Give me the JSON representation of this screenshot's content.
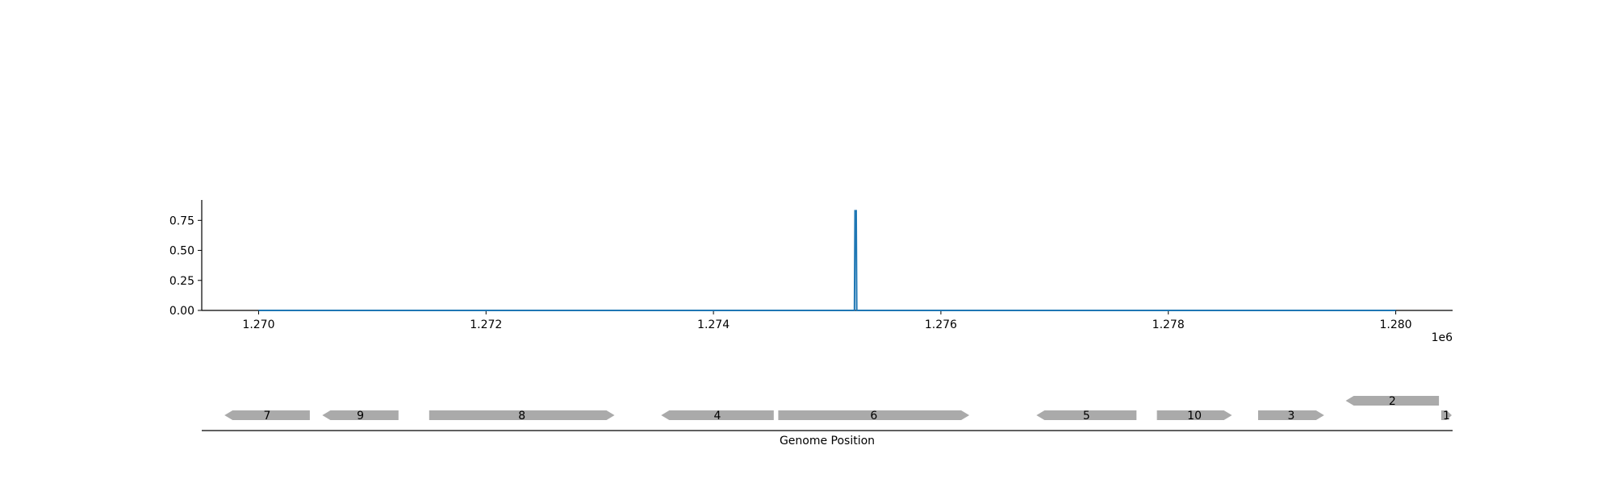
{
  "chart_data": [
    {
      "type": "line",
      "x_exponent_label": "1e6",
      "xlim": [
        1269500,
        1280500
      ],
      "ylim": [
        0,
        0.92
      ],
      "x_ticks": [
        1270000,
        1272000,
        1274000,
        1276000,
        1278000,
        1280000
      ],
      "x_tick_labels": [
        "1.270",
        "1.272",
        "1.274",
        "1.276",
        "1.278",
        "1.280"
      ],
      "y_ticks": [
        0,
        0.25,
        0.5,
        0.75
      ],
      "y_tick_labels": [
        "0.00",
        "0.25",
        "0.50",
        "0.75"
      ],
      "series": [
        {
          "x": [
            1270000,
            1275240,
            1275245,
            1275255,
            1275260,
            1280000
          ],
          "y": [
            0,
            0,
            0.83,
            0.83,
            0,
            0
          ]
        }
      ],
      "colors": {
        "line": "#1f77b4"
      },
      "grid": false
    },
    {
      "type": "gene-track",
      "xlabel": "Genome Position",
      "xlim": [
        1269500,
        1280500
      ],
      "genes": [
        {
          "label": "7",
          "start": 1269700,
          "end": 1270450,
          "strand": "-",
          "row": 0
        },
        {
          "label": "9",
          "start": 1270560,
          "end": 1271230,
          "strand": "-",
          "row": 0
        },
        {
          "label": "8",
          "start": 1271500,
          "end": 1273130,
          "strand": "+",
          "row": 0
        },
        {
          "label": "4",
          "start": 1273540,
          "end": 1274530,
          "strand": "-",
          "row": 0
        },
        {
          "label": "6",
          "start": 1274570,
          "end": 1276250,
          "strand": "+",
          "row": 0
        },
        {
          "label": "5",
          "start": 1276840,
          "end": 1277720,
          "strand": "-",
          "row": 0
        },
        {
          "label": "10",
          "start": 1277900,
          "end": 1278560,
          "strand": "+",
          "row": 0
        },
        {
          "label": "3",
          "start": 1278790,
          "end": 1279370,
          "strand": "+",
          "row": 0
        },
        {
          "label": "2",
          "start": 1279560,
          "end": 1280380,
          "strand": "-",
          "row": 1
        },
        {
          "label": "1",
          "start": 1280400,
          "end": 1280500,
          "strand": "+",
          "row": 0
        }
      ],
      "colors": {
        "gene": "#aaaaaa"
      }
    }
  ]
}
